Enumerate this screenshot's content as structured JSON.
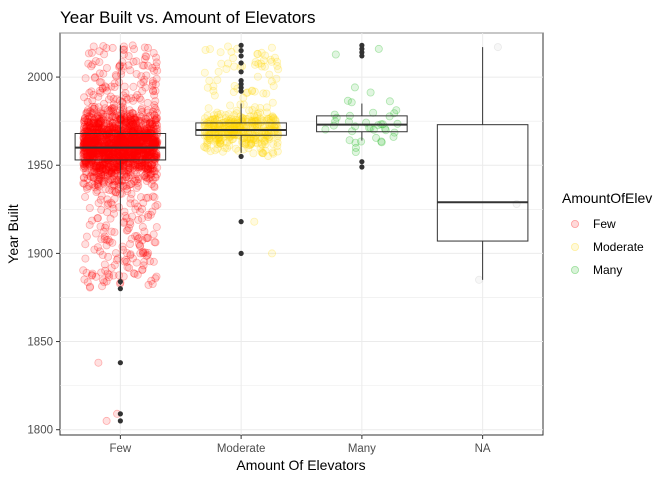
{
  "chart_data": {
    "type": "boxplot-jitter",
    "title": "Year Built vs. Amount of Elevators",
    "xlabel": "Amount Of Elevators",
    "ylabel": "Year Built",
    "categories": [
      "Few",
      "Moderate",
      "Many",
      "NA"
    ],
    "ylim": [
      1797,
      2025
    ],
    "yticks": [
      1800,
      1850,
      1900,
      1950,
      2000
    ],
    "grid": true,
    "legend": {
      "title": "AmountOfElev",
      "position": "right",
      "entries": [
        {
          "label": "Few",
          "color": "#ff0000"
        },
        {
          "label": "Moderate",
          "color": "#ffd700"
        },
        {
          "label": "Many",
          "color": "#00b000"
        }
      ]
    },
    "boxes": [
      {
        "category": "Few",
        "q1": 1953,
        "median": 1960,
        "q3": 1968,
        "whisker_low": 1882,
        "whisker_high": 2018,
        "outliers": [
          1838,
          1809,
          1805,
          1880,
          1884
        ]
      },
      {
        "category": "Moderate",
        "q1": 1967,
        "median": 1970,
        "q3": 1974,
        "whisker_low": 1957,
        "whisker_high": 1985,
        "outliers": [
          1900,
          1918,
          1955,
          1992,
          1994,
          1996,
          1998,
          2003,
          2008,
          2012,
          2015,
          2018
        ]
      },
      {
        "category": "Many",
        "q1": 1969,
        "median": 1973,
        "q3": 1978,
        "whisker_low": 1964,
        "whisker_high": 1985,
        "outliers": [
          1949,
          1952,
          2012,
          2014,
          2016,
          2018
        ]
      },
      {
        "category": "NA",
        "q1": 1907,
        "median": 1929,
        "q3": 1973,
        "whisker_low": 1885,
        "whisker_high": 2017,
        "outliers": []
      }
    ],
    "jitter": [
      {
        "category": "Few",
        "color": "#ff0000",
        "n": 1800,
        "center": 1961,
        "spread": 10,
        "min": 1880,
        "max": 2018,
        "extra": [
          1838,
          1809,
          1805
        ]
      },
      {
        "category": "Moderate",
        "color": "#ffd700",
        "n": 420,
        "center": 1970,
        "spread": 5,
        "min": 1955,
        "max": 2018,
        "extra": [
          1900,
          1918
        ]
      },
      {
        "category": "Many",
        "color": "#00b000",
        "n": 40,
        "center": 1973,
        "spread": 7,
        "min": 1949,
        "max": 2018,
        "extra": []
      },
      {
        "category": "NA",
        "color": "#bbbbbb",
        "n": 0,
        "center": 1929,
        "spread": 0,
        "min": 1885,
        "max": 2017,
        "extra": [
          2017,
          1928,
          1885
        ]
      }
    ]
  }
}
